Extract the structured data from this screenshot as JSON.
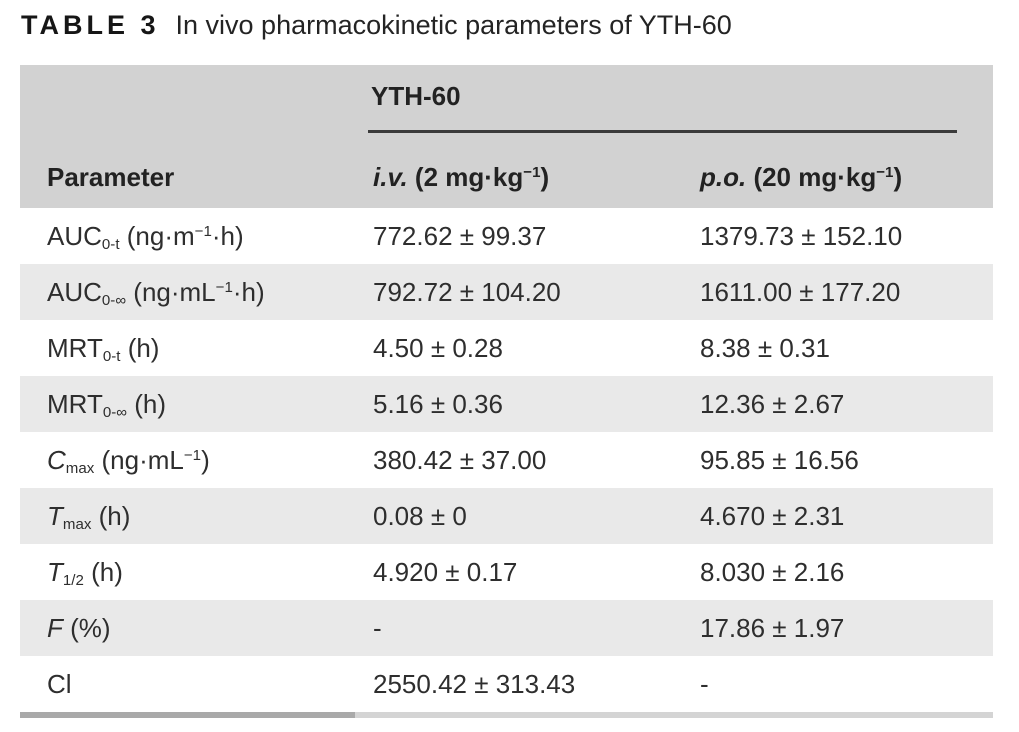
{
  "title": {
    "label": "TABLE 3",
    "text": "In vivo pharmacokinetic parameters of YTH-60"
  },
  "colors": {
    "header_bg": "#d2d2d2",
    "row_alt_bg": "#e9e9e9",
    "text": "#2e2e2e",
    "group_rule": "#3b3b3b",
    "bottom_bar_left": "#a9a9a9",
    "bottom_bar_right": "#d4d4d4"
  },
  "table": {
    "group_header": "YTH-60",
    "header": {
      "parameter": "Parameter",
      "iv": [
        {
          "t": "i.v.",
          "s": "i"
        },
        {
          "t": " (2 mg·kg",
          "s": "n"
        },
        {
          "t": "−1",
          "s": "sup"
        },
        {
          "t": ")",
          "s": "n"
        }
      ],
      "po": [
        {
          "t": "p.o.",
          "s": "i"
        },
        {
          "t": " (20 mg·kg",
          "s": "n"
        },
        {
          "t": "−1",
          "s": "sup"
        },
        {
          "t": ")",
          "s": "n"
        }
      ]
    },
    "rows": [
      {
        "label": [
          {
            "t": "AUC",
            "s": "n"
          },
          {
            "t": "0-t",
            "s": "sub"
          },
          {
            "t": " (ng·m",
            "s": "n"
          },
          {
            "t": "−1",
            "s": "sup"
          },
          {
            "t": "·h)",
            "s": "n"
          }
        ],
        "iv": "772.62 ± 99.37",
        "po": "1379.73 ± 152.10"
      },
      {
        "label": [
          {
            "t": "AUC",
            "s": "n"
          },
          {
            "t": "0-∞",
            "s": "sub"
          },
          {
            "t": " (ng·mL",
            "s": "n"
          },
          {
            "t": "−1",
            "s": "sup"
          },
          {
            "t": "·h)",
            "s": "n"
          }
        ],
        "iv": "792.72 ± 104.20",
        "po": "1611.00 ± 177.20"
      },
      {
        "label": [
          {
            "t": "MRT",
            "s": "n"
          },
          {
            "t": "0-t",
            "s": "sub"
          },
          {
            "t": " (h)",
            "s": "n"
          }
        ],
        "iv": "4.50 ± 0.28",
        "po": "8.38 ± 0.31"
      },
      {
        "label": [
          {
            "t": "MRT",
            "s": "n"
          },
          {
            "t": "0-∞",
            "s": "sub"
          },
          {
            "t": " (h)",
            "s": "n"
          }
        ],
        "iv": "5.16 ± 0.36",
        "po": "12.36 ± 2.67"
      },
      {
        "label": [
          {
            "t": "C",
            "s": "i"
          },
          {
            "t": "max",
            "s": "sub"
          },
          {
            "t": " (ng·mL",
            "s": "n"
          },
          {
            "t": "−1",
            "s": "sup"
          },
          {
            "t": ")",
            "s": "n"
          }
        ],
        "iv": "380.42 ± 37.00",
        "po": "95.85 ± 16.56"
      },
      {
        "label": [
          {
            "t": "T",
            "s": "i"
          },
          {
            "t": "max",
            "s": "sub"
          },
          {
            "t": " (h)",
            "s": "n"
          }
        ],
        "iv": "0.08 ± 0",
        "po": "4.670 ± 2.31"
      },
      {
        "label": [
          {
            "t": "T",
            "s": "i"
          },
          {
            "t": "1/2",
            "s": "sub"
          },
          {
            "t": " (h)",
            "s": "n"
          }
        ],
        "iv": "4.920 ± 0.17",
        "po": "8.030 ± 2.16"
      },
      {
        "label": [
          {
            "t": "F",
            "s": "i"
          },
          {
            "t": " (%)",
            "s": "n"
          }
        ],
        "iv": "-",
        "po": "17.86 ± 1.97"
      },
      {
        "label": [
          {
            "t": "Cl",
            "s": "n"
          }
        ],
        "iv": "2550.42 ± 313.43",
        "po": "-"
      }
    ]
  }
}
